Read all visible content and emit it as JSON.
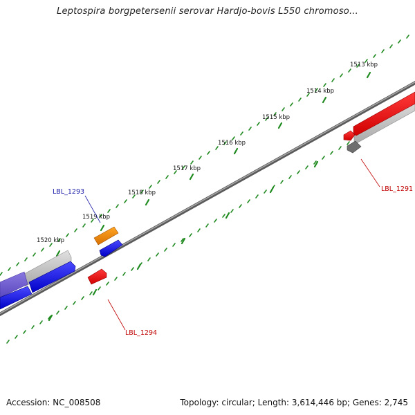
{
  "title": "Leptospira borgpetersenii serovar Hardjo-bovis L550 chromoso...",
  "accession": "Accession: NC_008508",
  "summary": "Topology: circular; Length: 3,614,446 bp; Genes: 2,745",
  "scale_labels": [
    "1513 kbp",
    "1514 kbp",
    "1515 kbp",
    "1516 kbp",
    "1517 kbp",
    "1518 kbp",
    "1519 kbp",
    "1520 kbp"
  ],
  "gene_labels": {
    "lbl_1293": "LBL_1293",
    "lbl_1291": "LBL_1291",
    "lbl_1294": "LBL_1294"
  },
  "colors": {
    "backbone": "#7a7a7a",
    "ticks": "#1f8a1f",
    "forward_gene": "#1010e0",
    "reverse_gene": "#e00000",
    "pseudo_gene": "#bfbfbf",
    "rna_gene": "#f08c00",
    "label_blue": "#1a1aa8",
    "label_red": "#c00000"
  }
}
